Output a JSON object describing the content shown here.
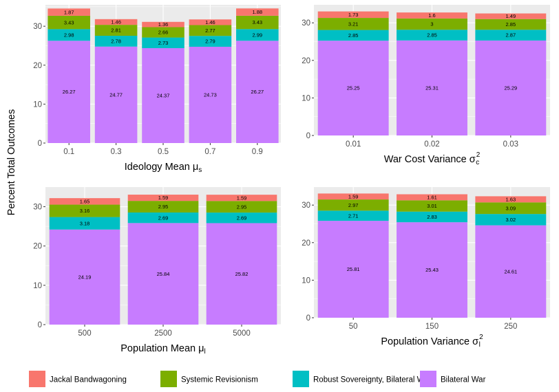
{
  "shared_ylabel": "Percent Total Outcomes",
  "legend": {
    "placement": "bottom",
    "items": [
      {
        "label": "Jackal Bandwagoning",
        "color": "#F8766D"
      },
      {
        "label": "Systemic Revisionism",
        "color": "#7CAE00"
      },
      {
        "label": "Robust Sovereignty, Bilateral War",
        "color": "#00BFC4"
      },
      {
        "label": "Bilateral War",
        "color": "#C77CFF"
      }
    ]
  },
  "chart_data": [
    {
      "type": "bar",
      "stacked": true,
      "xlabel": "Ideology Mean μs",
      "xlabel_main": "Ideology Mean μ",
      "xlabel_sub": "s",
      "categories": [
        "0.1",
        "0.3",
        "0.5",
        "0.7",
        "0.9"
      ],
      "series": [
        {
          "name": "Bilateral War",
          "values": [
            26.27,
            24.77,
            24.37,
            24.73,
            26.27
          ]
        },
        {
          "name": "Robust Sovereignty, Bilateral War",
          "values": [
            2.98,
            2.78,
            2.73,
            2.79,
            2.99
          ]
        },
        {
          "name": "Systemic Revisionism",
          "values": [
            3.43,
            2.81,
            2.66,
            2.77,
            3.43
          ]
        },
        {
          "name": "Jackal Bandwagoning",
          "values": [
            1.87,
            1.46,
            1.36,
            1.46,
            1.88
          ]
        }
      ],
      "value_labels": [
        [
          "26.27",
          "24.77",
          "24.37",
          "24.73",
          "26.27"
        ],
        [
          "2.98",
          "2.78",
          "2.73",
          "2.79",
          "2.99"
        ],
        [
          "3.43",
          "2.81",
          "2.66",
          "2.77",
          "3.43"
        ],
        [
          "1.87",
          "1.46",
          "1.36",
          "1.46",
          "1.88"
        ]
      ],
      "yticks": [
        "0",
        "10",
        "20",
        "30"
      ],
      "ylim": [
        0,
        35.5
      ],
      "grid": true
    },
    {
      "type": "bar",
      "stacked": true,
      "xlabel": "War Cost Variance σc2",
      "xlabel_main": "War Cost Variance σ",
      "xlabel_sub": "c",
      "xlabel_sup": "2",
      "categories": [
        "0.01",
        "0.02",
        "0.03"
      ],
      "series": [
        {
          "name": "Bilateral War",
          "values": [
            25.25,
            25.31,
            25.29
          ]
        },
        {
          "name": "Robust Sovereignty, Bilateral War",
          "values": [
            2.85,
            2.85,
            2.87
          ]
        },
        {
          "name": "Systemic Revisionism",
          "values": [
            3.21,
            3,
            2.85
          ]
        },
        {
          "name": "Jackal Bandwagoning",
          "values": [
            1.73,
            1.6,
            1.49
          ]
        }
      ],
      "value_labels": [
        [
          "25.25",
          "25.31",
          "25.29"
        ],
        [
          "2.85",
          "2.85",
          "2.87"
        ],
        [
          "3.21",
          "3",
          "2.85"
        ],
        [
          "1.73",
          "1.6",
          "1.49"
        ]
      ],
      "yticks": [
        "0",
        "10",
        "20",
        "30"
      ],
      "ylim": [
        0,
        34.8
      ],
      "grid": true
    },
    {
      "type": "bar",
      "stacked": true,
      "xlabel": "Population Mean μl",
      "xlabel_main": "Population Mean μ",
      "xlabel_sub": "l",
      "categories": [
        "500",
        "2500",
        "5000"
      ],
      "series": [
        {
          "name": "Bilateral War",
          "values": [
            24.19,
            25.84,
            25.82
          ]
        },
        {
          "name": "Robust Sovereignty, Bilateral War",
          "values": [
            3.18,
            2.69,
            2.69
          ]
        },
        {
          "name": "Systemic Revisionism",
          "values": [
            3.16,
            2.95,
            2.95
          ]
        },
        {
          "name": "Jackal Bandwagoning",
          "values": [
            1.65,
            1.59,
            1.59
          ]
        }
      ],
      "value_labels": [
        [
          "24.19",
          "25.84",
          "25.82"
        ],
        [
          "3.18",
          "2.69",
          "2.69"
        ],
        [
          "3.16",
          "2.95",
          "2.95"
        ],
        [
          "1.65",
          "1.59",
          "1.59"
        ]
      ],
      "yticks": [
        "0",
        "10",
        "20",
        "30"
      ],
      "ylim": [
        0,
        35
      ],
      "grid": true
    },
    {
      "type": "bar",
      "stacked": true,
      "xlabel": "Population Variance σl2",
      "xlabel_main": "Population Variance σ",
      "xlabel_sub": "l",
      "xlabel_sup": "2",
      "categories": [
        "50",
        "150",
        "250"
      ],
      "series": [
        {
          "name": "Bilateral War",
          "values": [
            25.81,
            25.43,
            24.61
          ]
        },
        {
          "name": "Robust Sovereignty, Bilateral War",
          "values": [
            2.71,
            2.83,
            3.02
          ]
        },
        {
          "name": "Systemic Revisionism",
          "values": [
            2.97,
            3.01,
            3.09
          ]
        },
        {
          "name": "Jackal Bandwagoning",
          "values": [
            1.59,
            1.61,
            1.63
          ]
        }
      ],
      "value_labels": [
        [
          "25.81",
          "25.43",
          "24.61"
        ],
        [
          "2.71",
          "2.83",
          "3.02"
        ],
        [
          "2.97",
          "3.01",
          "3.09"
        ],
        [
          "1.59",
          "1.61",
          "1.63"
        ]
      ],
      "yticks": [
        "0",
        "10",
        "20",
        "30"
      ],
      "ylim": [
        0,
        34.8
      ],
      "grid": true
    }
  ]
}
